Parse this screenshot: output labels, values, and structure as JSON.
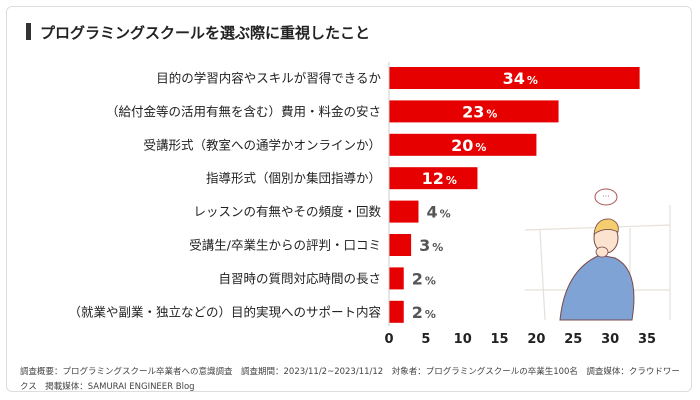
{
  "title": "プログラミングスクールを選ぶ際に重視したこと",
  "footnote": "調査概要：プログラミングスクール卒業者への意識調査　調査期間：2023/11/2~2023/11/12　対象者：プログラミングスクールの卒業生100名　調査媒体：クラウドワークス　掲載媒体：SAMURAI ENGINEER Blog",
  "colors": {
    "bar": "#e60000",
    "title_mark": "#333333"
  },
  "illustration": "thinking-man-icon",
  "chart_data": {
    "type": "bar",
    "orientation": "horizontal",
    "unit": "%",
    "categories": [
      "目的の学習内容やスキルが習得できるか",
      "（給付金等の活用有無を含む）費用・料金の安さ",
      "受講形式（教室への通学かオンラインか）",
      "指導形式（個別か集団指導か）",
      "レッスンの有無やその頻度・回数",
      "受講生/卒業生からの評判・口コミ",
      "自習時の質問対応時間の長さ",
      "（就業や副業・独立などの）目的実現へのサポート内容"
    ],
    "values": [
      34,
      23,
      20,
      12,
      4,
      3,
      2,
      2
    ],
    "xlim": [
      0,
      35
    ],
    "xticks": [
      0,
      5,
      10,
      15,
      20,
      25,
      30,
      35
    ],
    "grid": false
  }
}
